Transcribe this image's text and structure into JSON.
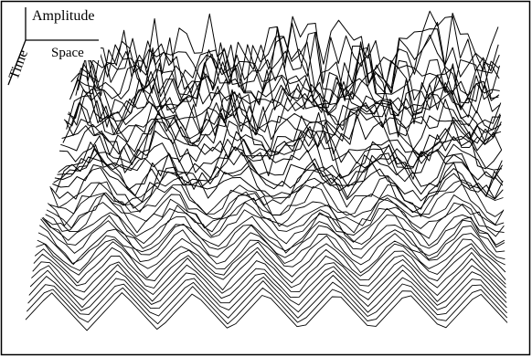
{
  "labels": {
    "amplitude": "Amplitude",
    "space": "Space",
    "time": "Time"
  },
  "colors": {
    "background": "#ffffff",
    "ink": "#000000"
  }
}
